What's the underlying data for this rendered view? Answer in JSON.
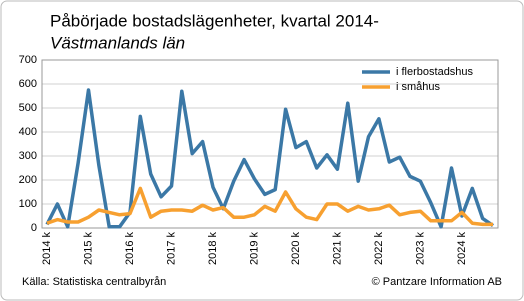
{
  "chart_data": {
    "type": "line",
    "title": "Påbörjade bostadslägenheter, kvartal 2014-",
    "subtitle": "Västmanlands län",
    "source": "Källa: Statistiska centralbyrån",
    "copyright": "© Pantzare Information AB",
    "categories": [
      "2014 k",
      null,
      null,
      null,
      "2015 k",
      null,
      null,
      null,
      "2016 k",
      null,
      null,
      null,
      "2017 k",
      null,
      null,
      null,
      "2018 k",
      null,
      null,
      null,
      "2019 k",
      null,
      null,
      null,
      "2020 k",
      null,
      null,
      null,
      "2021 k",
      null,
      null,
      null,
      "2022 k",
      null,
      null,
      null,
      "2023 k",
      null,
      null,
      null,
      "2024 k",
      null,
      null,
      null
    ],
    "series": [
      {
        "name": "i flerbostadshus",
        "color": "#3b78a6",
        "values": [
          15,
          100,
          5,
          270,
          575,
          260,
          5,
          5,
          65,
          465,
          225,
          130,
          175,
          570,
          310,
          360,
          170,
          80,
          195,
          285,
          205,
          140,
          160,
          495,
          335,
          360,
          250,
          305,
          245,
          520,
          195,
          380,
          455,
          275,
          295,
          215,
          195,
          105,
          5,
          250,
          50,
          165,
          40,
          10
        ]
      },
      {
        "name": "i småhus",
        "color": "#f7a030",
        "values": [
          20,
          35,
          25,
          25,
          45,
          75,
          65,
          55,
          60,
          165,
          45,
          70,
          75,
          75,
          70,
          95,
          75,
          85,
          45,
          45,
          55,
          90,
          70,
          150,
          80,
          45,
          35,
          100,
          100,
          70,
          90,
          75,
          80,
          95,
          55,
          65,
          70,
          30,
          30,
          30,
          65,
          20,
          15,
          15
        ]
      }
    ],
    "ylim": [
      0,
      700
    ],
    "yticks": [
      0,
      100,
      200,
      300,
      400,
      500,
      600,
      700
    ],
    "grid": true,
    "legend": "top-right"
  }
}
